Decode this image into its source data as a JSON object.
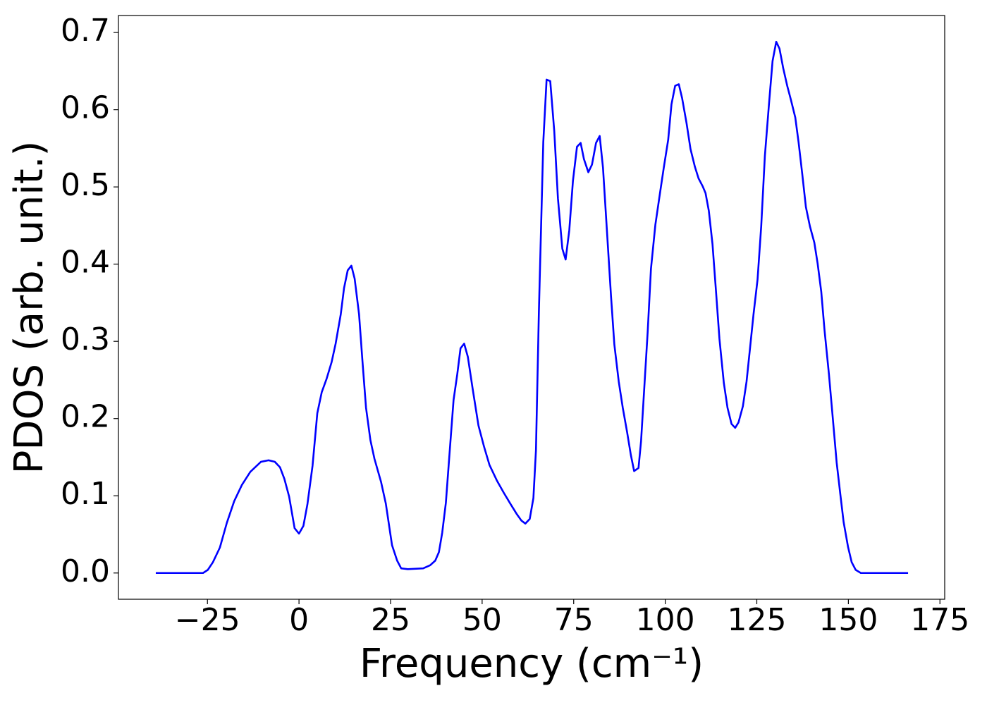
{
  "chart_data": {
    "type": "line",
    "xlabel": "Frequency (cm⁻¹)",
    "ylabel": "PDOS (arb. unit.)",
    "color": "#0000ff",
    "xlim": [
      -49.3,
      176.3
    ],
    "ylim": [
      -0.034,
      0.722
    ],
    "xticks": [
      {
        "value": -25,
        "label": "−25"
      },
      0,
      25,
      50,
      75,
      100,
      125,
      150,
      175
    ],
    "yticks": [
      {
        "value": 0,
        "label": "0.0"
      },
      0.1,
      0.2,
      0.3,
      0.4,
      0.5,
      0.6,
      0.7
    ],
    "x": [
      -39.1,
      -26.2,
      -24.9,
      -23.5,
      -21.6,
      -19.7,
      -17.7,
      -15.6,
      -13.3,
      -10.4,
      -8.3,
      -6.6,
      -5.2,
      -4.0,
      -2.7,
      -1.2,
      0,
      1.2,
      2.3,
      3.7,
      5.0,
      6.2,
      7.5,
      8.9,
      10.0,
      11.4,
      12.3,
      13.3,
      14.3,
      15.2,
      16.4,
      17.3,
      18.3,
      19.5,
      20.6,
      22.4,
      23.7,
      25.4,
      26.8,
      27.9,
      29.7,
      33.9,
      35.8,
      37.2,
      38.2,
      39.1,
      40.1,
      41.2,
      42.2,
      43.2,
      44.1,
      45.1,
      46.1,
      47.4,
      49.0,
      50.5,
      52.0,
      54.0,
      55.9,
      57.8,
      59.5,
      60.7,
      61.8,
      63.0,
      64.0,
      64.7,
      65.5,
      66.7,
      67.6,
      68.6,
      69.7,
      70.7,
      71.9,
      72.8,
      73.8,
      74.8,
      75.9,
      76.9,
      77.8,
      79.0,
      80.0,
      81.1,
      82.1,
      83.0,
      84.0,
      85.2,
      86.1,
      87.3,
      88.4,
      89.6,
      90.6,
      91.5,
      92.7,
      93.4,
      94.2,
      95.2,
      96.1,
      97.3,
      98.5,
      99.6,
      100.8,
      101.7,
      102.7,
      103.7,
      104.6,
      105.8,
      106.9,
      108.1,
      109.1,
      110.2,
      111.0,
      111.9,
      112.9,
      113.9,
      114.8,
      116.0,
      117.0,
      118.1,
      119.1,
      120.0,
      121.2,
      122.2,
      123.1,
      124.1,
      125.2,
      126.2,
      127.2,
      128.3,
      129.3,
      130.3,
      131.2,
      132.2,
      133.3,
      134.3,
      135.5,
      136.4,
      137.4,
      138.4,
      139.5,
      140.7,
      141.6,
      142.6,
      143.5,
      144.7,
      145.7,
      146.8,
      147.8,
      148.7,
      149.9,
      150.9,
      152.0,
      153.4,
      166.3
    ],
    "values": [
      0,
      0,
      0.004,
      0.014,
      0.033,
      0.065,
      0.093,
      0.114,
      0.131,
      0.144,
      0.146,
      0.144,
      0.137,
      0.122,
      0.099,
      0.058,
      0.051,
      0.061,
      0.089,
      0.139,
      0.207,
      0.234,
      0.251,
      0.273,
      0.297,
      0.335,
      0.369,
      0.392,
      0.398,
      0.381,
      0.335,
      0.276,
      0.214,
      0.172,
      0.148,
      0.118,
      0.09,
      0.036,
      0.016,
      0.006,
      0.005,
      0.006,
      0.01,
      0.016,
      0.027,
      0.052,
      0.091,
      0.161,
      0.224,
      0.257,
      0.291,
      0.297,
      0.28,
      0.239,
      0.191,
      0.164,
      0.14,
      0.12,
      0.104,
      0.089,
      0.076,
      0.068,
      0.064,
      0.07,
      0.097,
      0.159,
      0.339,
      0.558,
      0.639,
      0.637,
      0.572,
      0.485,
      0.42,
      0.406,
      0.444,
      0.508,
      0.552,
      0.557,
      0.536,
      0.519,
      0.529,
      0.557,
      0.566,
      0.525,
      0.449,
      0.358,
      0.296,
      0.248,
      0.214,
      0.182,
      0.153,
      0.132,
      0.136,
      0.171,
      0.234,
      0.312,
      0.394,
      0.451,
      0.49,
      0.525,
      0.561,
      0.607,
      0.631,
      0.633,
      0.615,
      0.583,
      0.549,
      0.526,
      0.511,
      0.501,
      0.492,
      0.469,
      0.426,
      0.362,
      0.303,
      0.246,
      0.214,
      0.193,
      0.188,
      0.195,
      0.216,
      0.248,
      0.289,
      0.335,
      0.38,
      0.449,
      0.54,
      0.606,
      0.663,
      0.688,
      0.679,
      0.654,
      0.631,
      0.613,
      0.59,
      0.558,
      0.517,
      0.474,
      0.449,
      0.428,
      0.401,
      0.364,
      0.314,
      0.257,
      0.203,
      0.143,
      0.102,
      0.066,
      0.034,
      0.014,
      0.004,
      0,
      0
    ]
  }
}
